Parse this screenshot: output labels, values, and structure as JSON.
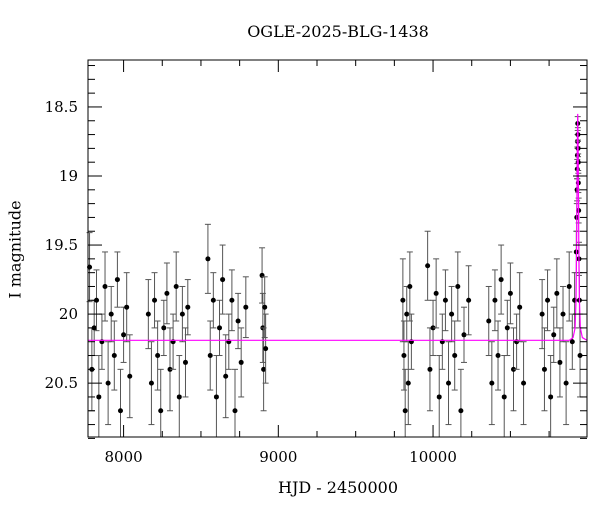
{
  "chart_data": {
    "type": "scatter",
    "title": "OGLE-2025-BLG-1438",
    "xlabel": "HJD - 2450000",
    "ylabel": "I magnitude",
    "xlim": [
      7770,
      10995
    ],
    "ylim": [
      20.89,
      18.16
    ],
    "y_inverted": true,
    "grid": false,
    "x_ticks": [
      "8000",
      "9000",
      "10000"
    ],
    "y_ticks": [
      "18.5",
      "19",
      "19.5",
      "20",
      "20.5"
    ],
    "point_color": "#000000",
    "errorbar_color": "#555555",
    "model_color": "#ff00ff",
    "series": [
      {
        "kind": "data",
        "points": [
          [
            7780,
            19.66,
            0.25
          ],
          [
            7795,
            20.4,
            0.3
          ],
          [
            7810,
            20.1,
            0.2
          ],
          [
            7825,
            19.9,
            0.22
          ],
          [
            7840,
            20.6,
            0.3
          ],
          [
            7860,
            20.2,
            0.2
          ],
          [
            7880,
            19.8,
            0.25
          ],
          [
            7900,
            20.5,
            0.3
          ],
          [
            7920,
            20.0,
            0.2
          ],
          [
            7940,
            20.3,
            0.25
          ],
          [
            7960,
            19.75,
            0.2
          ],
          [
            7980,
            20.7,
            0.3
          ],
          [
            8000,
            20.15,
            0.2
          ],
          [
            8020,
            19.95,
            0.25
          ],
          [
            8040,
            20.45,
            0.3
          ],
          [
            8160,
            20.0,
            0.25
          ],
          [
            8180,
            20.5,
            0.3
          ],
          [
            8200,
            19.9,
            0.2
          ],
          [
            8220,
            20.3,
            0.25
          ],
          [
            8240,
            20.7,
            0.3
          ],
          [
            8260,
            20.1,
            0.2
          ],
          [
            8280,
            19.85,
            0.22
          ],
          [
            8300,
            20.4,
            0.3
          ],
          [
            8320,
            20.2,
            0.2
          ],
          [
            8340,
            19.8,
            0.25
          ],
          [
            8360,
            20.6,
            0.3
          ],
          [
            8380,
            20.0,
            0.2
          ],
          [
            8400,
            20.35,
            0.25
          ],
          [
            8415,
            19.95,
            0.2
          ],
          [
            8545,
            19.6,
            0.25
          ],
          [
            8560,
            20.3,
            0.25
          ],
          [
            8580,
            19.9,
            0.2
          ],
          [
            8600,
            20.6,
            0.3
          ],
          [
            8620,
            20.1,
            0.2
          ],
          [
            8640,
            19.75,
            0.25
          ],
          [
            8660,
            20.45,
            0.3
          ],
          [
            8680,
            20.2,
            0.2
          ],
          [
            8700,
            19.9,
            0.22
          ],
          [
            8720,
            20.7,
            0.3
          ],
          [
            8740,
            20.05,
            0.2
          ],
          [
            8760,
            20.35,
            0.25
          ],
          [
            8790,
            19.95,
            0.22
          ],
          [
            8895,
            19.72,
            0.2
          ],
          [
            8900,
            20.1,
            0.25
          ],
          [
            8905,
            20.4,
            0.3
          ],
          [
            8912,
            19.95,
            0.22
          ],
          [
            8918,
            20.25,
            0.25
          ],
          [
            9805,
            19.9,
            0.3
          ],
          [
            9812,
            20.3,
            0.25
          ],
          [
            9820,
            20.7,
            0.3
          ],
          [
            9830,
            20.0,
            0.2
          ],
          [
            9840,
            20.5,
            0.3
          ],
          [
            9850,
            19.8,
            0.25
          ],
          [
            9860,
            20.2,
            0.2
          ],
          [
            9965,
            19.65,
            0.25
          ],
          [
            9980,
            20.4,
            0.3
          ],
          [
            10000,
            20.1,
            0.2
          ],
          [
            10020,
            19.85,
            0.25
          ],
          [
            10040,
            20.6,
            0.3
          ],
          [
            10060,
            20.2,
            0.2
          ],
          [
            10080,
            19.9,
            0.22
          ],
          [
            10100,
            20.5,
            0.3
          ],
          [
            10120,
            20.0,
            0.2
          ],
          [
            10140,
            20.3,
            0.25
          ],
          [
            10160,
            19.8,
            0.25
          ],
          [
            10180,
            20.7,
            0.3
          ],
          [
            10200,
            20.15,
            0.2
          ],
          [
            10230,
            19.9,
            0.25
          ],
          [
            10360,
            20.05,
            0.25
          ],
          [
            10380,
            20.5,
            0.3
          ],
          [
            10400,
            19.9,
            0.22
          ],
          [
            10420,
            20.3,
            0.25
          ],
          [
            10440,
            19.75,
            0.25
          ],
          [
            10460,
            20.6,
            0.3
          ],
          [
            10480,
            20.1,
            0.2
          ],
          [
            10500,
            19.85,
            0.22
          ],
          [
            10520,
            20.4,
            0.3
          ],
          [
            10540,
            20.2,
            0.2
          ],
          [
            10560,
            19.95,
            0.25
          ],
          [
            10585,
            20.5,
            0.3
          ],
          [
            10705,
            20.0,
            0.25
          ],
          [
            10720,
            20.4,
            0.3
          ],
          [
            10740,
            19.9,
            0.22
          ],
          [
            10760,
            20.6,
            0.3
          ],
          [
            10780,
            20.15,
            0.2
          ],
          [
            10800,
            19.85,
            0.25
          ],
          [
            10820,
            20.35,
            0.25
          ],
          [
            10840,
            20.0,
            0.2
          ],
          [
            10860,
            20.5,
            0.3
          ],
          [
            10880,
            19.8,
            0.25
          ],
          [
            10900,
            20.2,
            0.2
          ],
          [
            10915,
            19.9,
            0.2
          ],
          [
            10926,
            19.55,
            0.15
          ],
          [
            10929,
            19.3,
            0.1
          ],
          [
            10931,
            19.1,
            0.08
          ],
          [
            10932,
            18.95,
            0.07
          ],
          [
            10933,
            18.85,
            0.06
          ],
          [
            10934,
            18.75,
            0.05
          ],
          [
            10935,
            18.62,
            0.05
          ],
          [
            10936,
            18.7,
            0.05
          ],
          [
            10937,
            18.8,
            0.06
          ],
          [
            10938,
            18.9,
            0.06
          ],
          [
            10939,
            19.05,
            0.07
          ],
          [
            10941,
            19.25,
            0.09
          ],
          [
            10943,
            19.6,
            0.12
          ],
          [
            10946,
            19.9,
            0.2
          ],
          [
            10950,
            20.3,
            0.3
          ]
        ]
      },
      {
        "kind": "model",
        "points": [
          [
            7770,
            20.19
          ],
          [
            10880,
            20.19
          ],
          [
            10905,
            20.17
          ],
          [
            10918,
            20.1
          ],
          [
            10924,
            19.9
          ],
          [
            10928,
            19.5
          ],
          [
            10931,
            19.0
          ],
          [
            10933,
            18.7
          ],
          [
            10935,
            18.55
          ],
          [
            10937,
            18.7
          ],
          [
            10939,
            19.0
          ],
          [
            10942,
            19.5
          ],
          [
            10946,
            19.9
          ],
          [
            10952,
            20.1
          ],
          [
            10965,
            20.17
          ],
          [
            10995,
            20.19
          ]
        ]
      }
    ]
  }
}
